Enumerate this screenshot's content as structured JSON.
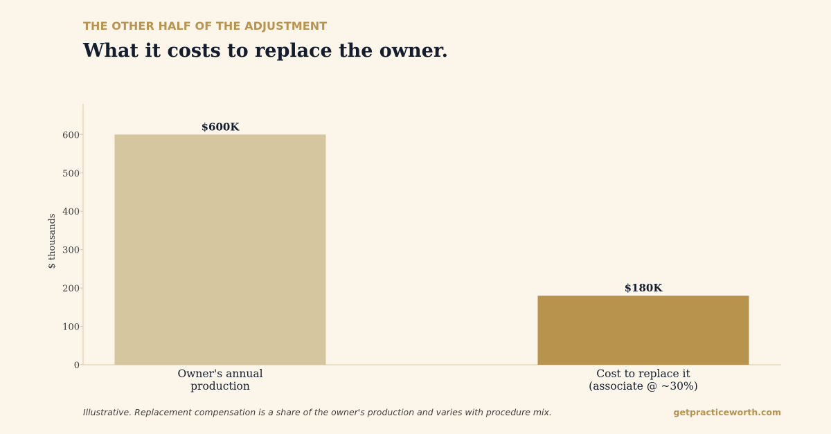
{
  "header": {
    "eyebrow": "THE OTHER HALF OF THE ADJUSTMENT",
    "title": "What it costs to replace the owner."
  },
  "chart_data": {
    "type": "bar",
    "categories": [
      [
        "Owner's annual",
        "production"
      ],
      [
        "Cost to replace it",
        "(associate @ ~30%)"
      ]
    ],
    "values": [
      600,
      180
    ],
    "data_labels": [
      "$600K",
      "$180K"
    ],
    "colors": [
      "#D6C6A0",
      "#B8934E"
    ],
    "ylabel": "$ thousands",
    "ylim": [
      0,
      680
    ],
    "yticks": [
      0,
      100,
      200,
      300,
      400,
      500,
      600
    ],
    "grid": false
  },
  "footer": {
    "note": "Illustrative. Replacement compensation is a share of the owner's production and varies with procedure mix.",
    "site": "getpracticeworth.com"
  }
}
